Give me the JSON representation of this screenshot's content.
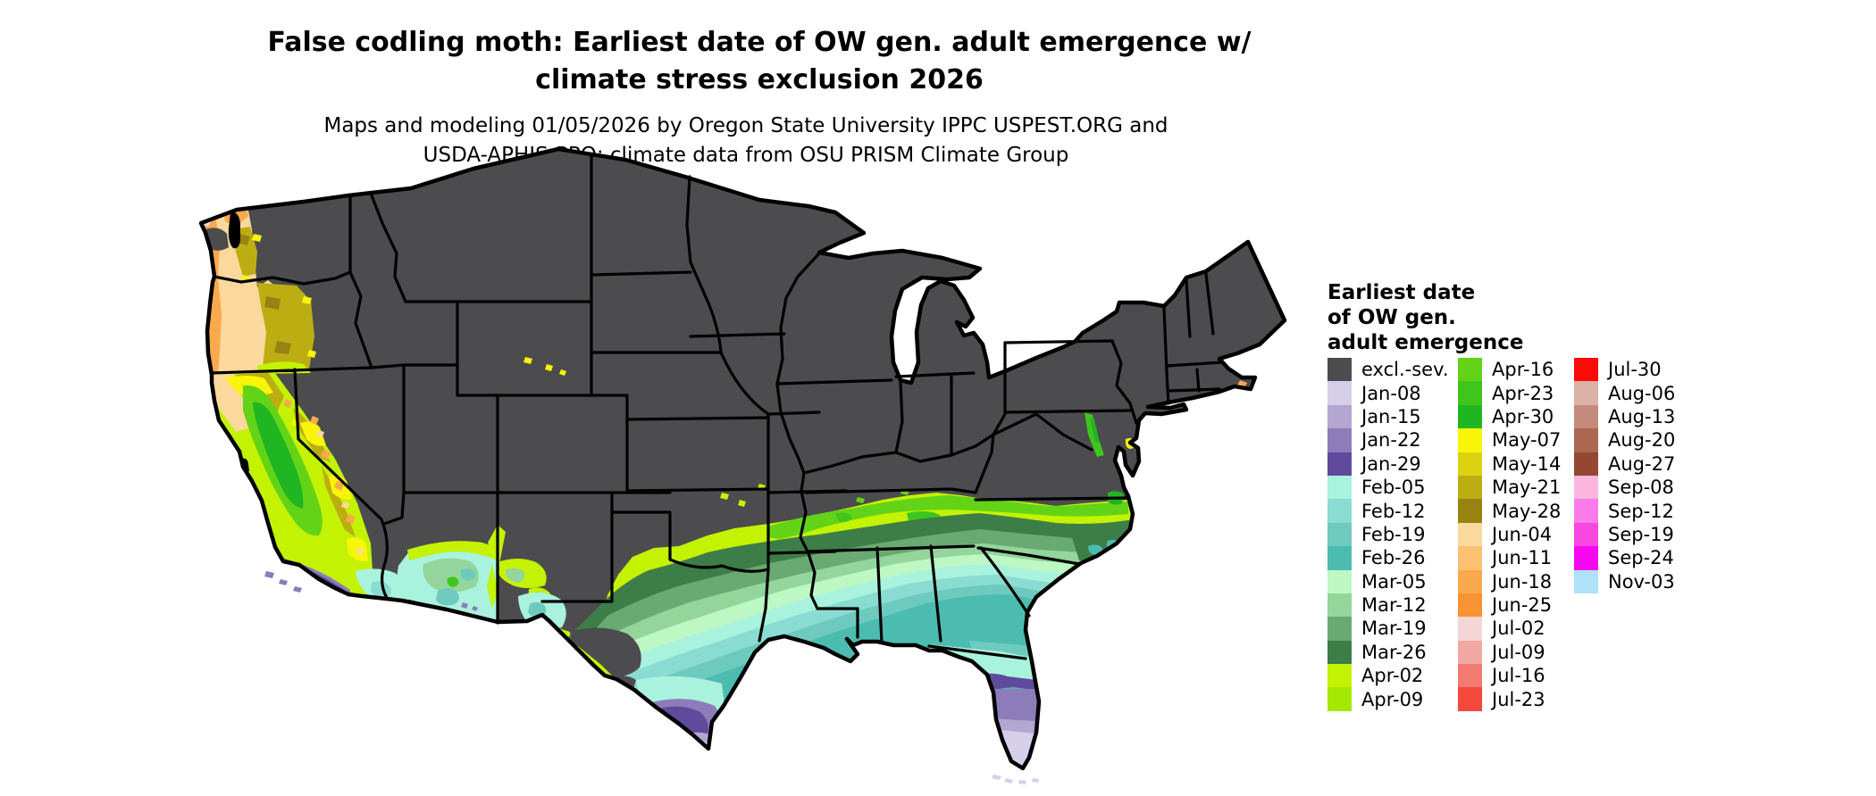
{
  "title": {
    "line1": "False codling moth: Earliest date of OW gen. adult emergence w/",
    "line2": "climate stress exclusion 2026"
  },
  "subtitle": {
    "line1": "Maps and modeling 01/05/2026 by Oregon State University IPPC USPEST.ORG and",
    "line2": "USDA-APHIS-PPQ; climate data from OSU PRISM Climate Group"
  },
  "legend": {
    "title_lines": "Earliest date\nof OW gen.\nadult emergence",
    "columns": [
      {
        "entries": [
          {
            "label": "excl.-sev.",
            "color_key": "excl"
          },
          {
            "label": "Jan-08",
            "color_key": "jan08"
          },
          {
            "label": "Jan-15",
            "color_key": "jan15"
          },
          {
            "label": "Jan-22",
            "color_key": "jan22"
          },
          {
            "label": "Jan-29",
            "color_key": "jan29"
          },
          {
            "label": "Feb-05",
            "color_key": "feb05"
          },
          {
            "label": "Feb-12",
            "color_key": "feb12"
          },
          {
            "label": "Feb-19",
            "color_key": "feb19"
          },
          {
            "label": "Feb-26",
            "color_key": "feb26"
          },
          {
            "label": "Mar-05",
            "color_key": "mar05"
          },
          {
            "label": "Mar-12",
            "color_key": "mar12"
          },
          {
            "label": "Mar-19",
            "color_key": "mar19"
          },
          {
            "label": "Mar-26",
            "color_key": "mar26"
          },
          {
            "label": "Apr-02",
            "color_key": "apr02"
          },
          {
            "label": "Apr-09",
            "color_key": "apr09"
          }
        ]
      },
      {
        "entries": [
          {
            "label": "Apr-16",
            "color_key": "apr16"
          },
          {
            "label": "Apr-23",
            "color_key": "apr23"
          },
          {
            "label": "Apr-30",
            "color_key": "apr30"
          },
          {
            "label": "May-07",
            "color_key": "may07"
          },
          {
            "label": "May-14",
            "color_key": "may14"
          },
          {
            "label": "May-21",
            "color_key": "may21"
          },
          {
            "label": "May-28",
            "color_key": "may28"
          },
          {
            "label": "Jun-04",
            "color_key": "jun04"
          },
          {
            "label": "Jun-11",
            "color_key": "jun11"
          },
          {
            "label": "Jun-18",
            "color_key": "jun18"
          },
          {
            "label": "Jun-25",
            "color_key": "jun25"
          },
          {
            "label": "Jul-02",
            "color_key": "jul02"
          },
          {
            "label": "Jul-09",
            "color_key": "jul09"
          },
          {
            "label": "Jul-16",
            "color_key": "jul16"
          },
          {
            "label": "Jul-23",
            "color_key": "jul23"
          }
        ]
      },
      {
        "entries": [
          {
            "label": "Jul-30",
            "color_key": "jul30"
          },
          {
            "label": "Aug-06",
            "color_key": "aug06"
          },
          {
            "label": "Aug-13",
            "color_key": "aug13"
          },
          {
            "label": "Aug-20",
            "color_key": "aug20"
          },
          {
            "label": "Aug-27",
            "color_key": "aug27"
          },
          {
            "label": "Sep-08",
            "color_key": "sep08"
          },
          {
            "label": "Sep-12",
            "color_key": "sep12"
          },
          {
            "label": "Sep-19",
            "color_key": "sep19"
          },
          {
            "label": "Sep-24",
            "color_key": "sep24"
          },
          {
            "label": "Nov-03",
            "color_key": "nov03"
          }
        ]
      }
    ]
  },
  "palette": {
    "excl": "#4c4c4e",
    "jan08": "#d6cfe9",
    "jan15": "#b3a6d1",
    "jan22": "#8d7cba",
    "jan29": "#5f4a9c",
    "feb05": "#a9f2dd",
    "feb12": "#8adcd2",
    "feb19": "#6ecabe",
    "feb26": "#4cbcb0",
    "mar05": "#bdf7c3",
    "mar12": "#93d59b",
    "mar19": "#69aa72",
    "mar26": "#3d7d48",
    "apr02": "#c3f202",
    "apr09": "#a4e703",
    "apr16": "#63d317",
    "apr23": "#3ec61c",
    "apr30": "#1fb621",
    "may07": "#f9f506",
    "may14": "#dcd211",
    "may21": "#bcae12",
    "may28": "#978312",
    "jun04": "#fbd89c",
    "jun11": "#fbc171",
    "jun18": "#fba94e",
    "jun25": "#f99232",
    "jul02": "#f5d5d5",
    "jul09": "#f3a8a4",
    "jul16": "#f37a71",
    "jul23": "#f4483c",
    "jul30": "#fb0b07",
    "aug06": "#dcb2a6",
    "aug13": "#c48b7c",
    "aug20": "#ab6752",
    "aug27": "#944733",
    "sep08": "#fcb5dd",
    "sep12": "#fb7ce8",
    "sep19": "#f948e2",
    "sep24": "#f807f1",
    "nov03": "#aee3f9",
    "border": "#000000",
    "water": "#ffffff"
  }
}
